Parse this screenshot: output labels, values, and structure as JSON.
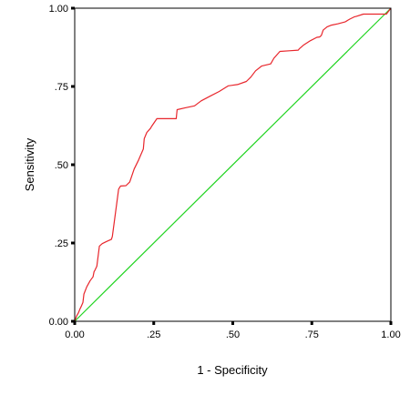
{
  "chart_data": {
    "type": "line",
    "title": "",
    "xlabel": "1 - Specificity",
    "ylabel": "Sensitivity",
    "xlim": [
      0,
      1
    ],
    "ylim": [
      0,
      1
    ],
    "grid": false,
    "legend": "none",
    "x_ticks": [
      0,
      0.25,
      0.5,
      0.75,
      1
    ],
    "x_tick_labels": [
      "0.00",
      ".25",
      ".50",
      ".75",
      "1.00"
    ],
    "y_ticks": [
      0,
      0.25,
      0.5,
      0.75,
      1
    ],
    "y_tick_labels": [
      "0.00",
      ".25",
      ".50",
      ".75",
      "1.00"
    ],
    "series": [
      {
        "color": "#e8262c",
        "x": [
          0.0,
          0.006,
          0.009,
          0.012,
          0.017,
          0.02,
          0.026,
          0.029,
          0.038,
          0.049,
          0.058,
          0.061,
          0.064,
          0.07,
          0.078,
          0.087,
          0.101,
          0.116,
          0.119,
          0.139,
          0.145,
          0.162,
          0.174,
          0.188,
          0.202,
          0.217,
          0.22,
          0.228,
          0.24,
          0.243,
          0.26,
          0.281,
          0.301,
          0.321,
          0.324,
          0.35,
          0.379,
          0.4,
          0.428,
          0.457,
          0.486,
          0.515,
          0.543,
          0.557,
          0.572,
          0.591,
          0.62,
          0.63,
          0.649,
          0.678,
          0.707,
          0.71,
          0.725,
          0.745,
          0.766,
          0.775,
          0.78,
          0.786,
          0.798,
          0.812,
          0.832,
          0.855,
          0.87,
          0.884,
          0.891,
          0.913,
          0.942,
          0.971,
          0.986,
          1.0
        ],
        "y": [
          0.0,
          0.017,
          0.022,
          0.028,
          0.04,
          0.046,
          0.06,
          0.087,
          0.11,
          0.13,
          0.142,
          0.158,
          0.163,
          0.176,
          0.24,
          0.248,
          0.255,
          0.262,
          0.271,
          0.422,
          0.432,
          0.433,
          0.445,
          0.486,
          0.515,
          0.55,
          0.583,
          0.603,
          0.617,
          0.622,
          0.647,
          0.647,
          0.647,
          0.647,
          0.676,
          0.682,
          0.688,
          0.704,
          0.719,
          0.734,
          0.752,
          0.756,
          0.766,
          0.78,
          0.8,
          0.815,
          0.822,
          0.84,
          0.862,
          0.864,
          0.866,
          0.87,
          0.883,
          0.896,
          0.907,
          0.908,
          0.913,
          0.93,
          0.94,
          0.946,
          0.95,
          0.956,
          0.965,
          0.972,
          0.974,
          0.981,
          0.981,
          0.981,
          0.981,
          1.0
        ]
      },
      {
        "color": "#21d421",
        "x": [
          0,
          1
        ],
        "y": [
          0,
          1
        ]
      }
    ]
  }
}
